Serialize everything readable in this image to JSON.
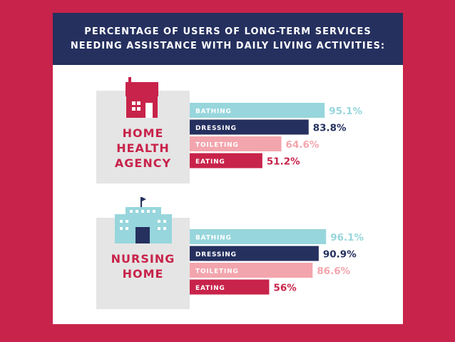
{
  "title_lines": [
    "PERCENTAGE OF USERS OF LONG-TERM SERVICES",
    "NEEDING ASSISTANCE WITH DAILY LIVING ACTIVITIES:"
  ],
  "colors": {
    "background": "#c8234a",
    "header": "#25305f",
    "bathing": "#97d6dc",
    "dressing": "#25305f",
    "toileting": "#f3a5ad",
    "eating": "#c8234a",
    "panel": "#e5e5e5"
  },
  "icons": [
    "house-icon",
    "hospital-building-icon"
  ],
  "panels": [
    {
      "label_lines": [
        "HOME",
        "HEALTH",
        "AGENCY"
      ]
    },
    {
      "label_lines": [
        "NURSING",
        "HOME"
      ]
    }
  ],
  "chart_data": [
    {
      "type": "bar",
      "group": "HOME HEALTH AGENCY",
      "categories": [
        "BATHING",
        "DRESSING",
        "TOILETING",
        "EATING"
      ],
      "values": [
        95.1,
        83.8,
        64.6,
        51.2
      ],
      "value_labels": [
        "95.1%",
        "83.8%",
        "64.6%",
        "51.2%"
      ]
    },
    {
      "type": "bar",
      "group": "NURSING HOME",
      "categories": [
        "BATHING",
        "DRESSING",
        "TOILETING",
        "EATING"
      ],
      "values": [
        96.1,
        90.9,
        86.6,
        56
      ],
      "value_labels": [
        "96.1%",
        "90.9%",
        "86.6%",
        "56%"
      ]
    }
  ]
}
